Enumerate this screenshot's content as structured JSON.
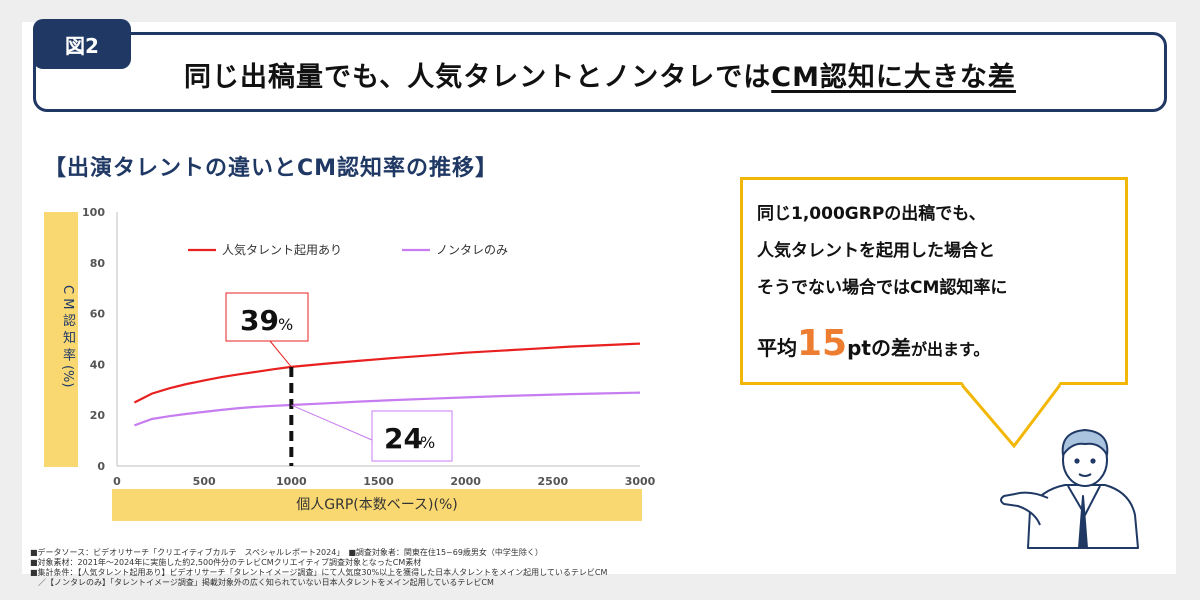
{
  "figure_tab": "図2",
  "title": {
    "main": "同じ出稿量でも、人気タレントとノンタレでは",
    "underlined": "CM認知に大きな差"
  },
  "subtitle": "【出演タレントの違いとCM認知率の推移】",
  "y_axis_label": "C M 認 知 率 (%)",
  "x_axis_label": "個人GRP(本数ベース)(%)",
  "annotations": {
    "talent_value": "39",
    "non_talent_value": "24",
    "unit": "%"
  },
  "speech_bubble": {
    "line1": "同じ1,000GRPの出稿でも、",
    "line2": "人気タレントを起用した場合と",
    "line3": "そうでない場合ではCM認知率に",
    "line4_prefix": "平均",
    "line4_number": "15",
    "line4_pt": "pt",
    "line4_suffix_a": "の差",
    "line4_suffix_b": "が出ます。"
  },
  "notes": [
    "■データソース：ビデオリサーチ「クリエイティブカルテ　スペシャルレポート2024」　■調査対象者：関東在住15~69歳男女（中学生除く）",
    "■対象素材：2021年～2024年に実施した約2,500件分のテレビCMクリエイティブ調査対象となったCM素材",
    "■集計条件：【人気タレント起用あり】ビデオリサーチ「タレントイメージ調査」にて人気度30%以上を獲得した日本人タレントをメイン起用しているテレビCM",
    "　／【ノンタレのみ】「タレントイメージ調査」掲載対象外の広く知られていない日本人タレントをメイン起用しているテレビCM"
  ],
  "colors": {
    "navy": "#1f3864",
    "yellow": "#f9d872",
    "gold": "#f2b705",
    "red": "#e8201f",
    "purple": "#c77cf0",
    "orange": "#ed7d31"
  },
  "chart_data": {
    "type": "line",
    "xlim": [
      0,
      3000
    ],
    "ylim": [
      0,
      100
    ],
    "x_ticks": [
      0,
      500,
      1000,
      1500,
      2000,
      2500,
      3000
    ],
    "y_ticks": [
      0,
      20,
      40,
      60,
      80,
      100
    ],
    "grid": false,
    "legend": "top",
    "marker_x": 1000,
    "series": [
      {
        "name": "人気タレント起用あり",
        "color": "#e8201f",
        "x": [
          100,
          200,
          300,
          400,
          500,
          600,
          700,
          800,
          900,
          1000,
          1200,
          1400,
          1600,
          1800,
          2000,
          2200,
          2400,
          2600,
          2800,
          3000
        ],
        "y": [
          25,
          28.5,
          30.6,
          32.3,
          33.7,
          35,
          36.1,
          37.1,
          38.1,
          39,
          40.3,
          41.5,
          42.6,
          43.6,
          44.6,
          45.4,
          46.2,
          47,
          47.6,
          48.2
        ]
      },
      {
        "name": "ノンタレのみ",
        "color": "#c77cf0",
        "x": [
          100,
          200,
          300,
          400,
          500,
          600,
          700,
          800,
          900,
          1000,
          1200,
          1400,
          1600,
          1800,
          2000,
          2200,
          2400,
          2600,
          2800,
          3000
        ],
        "y": [
          16,
          18.5,
          19.6,
          20.5,
          21.3,
          22.1,
          22.8,
          23.3,
          23.7,
          24,
          24.7,
          25.4,
          26,
          26.5,
          27,
          27.5,
          27.9,
          28.3,
          28.6,
          28.9
        ]
      }
    ]
  }
}
